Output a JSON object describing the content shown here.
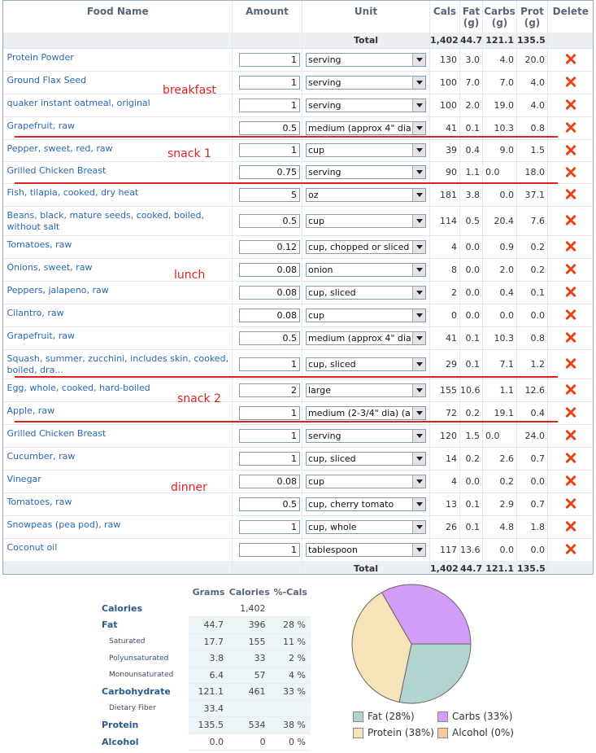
{
  "headers": {
    "name": "Food Name",
    "amount": "Amount",
    "unit": "Unit",
    "cals": "Cals",
    "fat": "Fat (g)",
    "carbs": "Carbs (g)",
    "prot": "Prot (g)",
    "delete": "Delete"
  },
  "total": {
    "label": "Total",
    "cals": "1,402",
    "fat": "44.7",
    "carbs": "121.1",
    "prot": "135.5"
  },
  "foods": [
    {
      "name": "Protein Powder",
      "amount": "1",
      "unit": "serving",
      "cals": "130",
      "fat": "3.0",
      "carbs": "4.0",
      "prot": "20.0"
    },
    {
      "name": "Ground Flax Seed",
      "amount": "1",
      "unit": "serving",
      "cals": "100",
      "fat": "7.0",
      "carbs": "7.0",
      "prot": "4.0"
    },
    {
      "name": "quaker instant oatmeal, original",
      "amount": "1",
      "unit": "serving",
      "cals": "100",
      "fat": "2.0",
      "carbs": "19.0",
      "prot": "4.0"
    },
    {
      "name": "Grapefruit, raw",
      "amount": "0.5",
      "unit": "medium (approx 4\" dia",
      "cals": "41",
      "fat": "0.1",
      "carbs": "10.3",
      "prot": "0.8"
    },
    {
      "name": "Pepper, sweet, red, raw",
      "amount": "1",
      "unit": "cup",
      "cals": "39",
      "fat": "0.4",
      "carbs": "9.0",
      "prot": "1.5"
    },
    {
      "name": "Grilled Chicken Breast",
      "amount": "0.75",
      "unit": "serving",
      "cals": "90",
      "fat": "1.1",
      "carbs": "0.0",
      "prot": "18.0"
    },
    {
      "name": "Fish, tilapia, cooked, dry heat",
      "amount": "5",
      "unit": "oz",
      "cals": "181",
      "fat": "3.8",
      "carbs": "0.0",
      "prot": "37.1"
    },
    {
      "name": "Beans, black, mature seeds, cooked, boiled, without salt",
      "amount": "0.5",
      "unit": "cup",
      "cals": "114",
      "fat": "0.5",
      "carbs": "20.4",
      "prot": "7.6"
    },
    {
      "name": "Tomatoes, raw",
      "amount": "0.12",
      "unit": "cup, chopped or sliced",
      "cals": "4",
      "fat": "0.0",
      "carbs": "0.9",
      "prot": "0.2"
    },
    {
      "name": "Onions, sweet, raw",
      "amount": "0.08",
      "unit": "onion",
      "cals": "8",
      "fat": "0.0",
      "carbs": "2.0",
      "prot": "0.2"
    },
    {
      "name": "Peppers, jalapeno, raw",
      "amount": "0.08",
      "unit": "cup, sliced",
      "cals": "2",
      "fat": "0.0",
      "carbs": "0.4",
      "prot": "0.1"
    },
    {
      "name": "Cilantro, raw",
      "amount": "0.08",
      "unit": "cup",
      "cals": "0",
      "fat": "0.0",
      "carbs": "0.0",
      "prot": "0.0"
    },
    {
      "name": "Grapefruit, raw",
      "amount": "0.5",
      "unit": "medium (approx 4\" dia",
      "cals": "41",
      "fat": "0.1",
      "carbs": "10.3",
      "prot": "0.8"
    },
    {
      "name": "Squash, summer, zucchini, includes skin, cooked, boiled, dra...",
      "amount": "1",
      "unit": "cup, sliced",
      "cals": "29",
      "fat": "0.1",
      "carbs": "7.1",
      "prot": "1.2"
    },
    {
      "name": "Egg, whole, cooked, hard-boiled",
      "amount": "2",
      "unit": "large",
      "cals": "155",
      "fat": "10.6",
      "carbs": "1.1",
      "prot": "12.6"
    },
    {
      "name": "Apple, raw",
      "amount": "1",
      "unit": "medium (2-3/4\" dia) (a",
      "cals": "72",
      "fat": "0.2",
      "carbs": "19.1",
      "prot": "0.4"
    },
    {
      "name": "Grilled Chicken Breast",
      "amount": "1",
      "unit": "serving",
      "cals": "120",
      "fat": "1.5",
      "carbs": "0.0",
      "prot": "24.0"
    },
    {
      "name": "Cucumber, raw",
      "amount": "1",
      "unit": "cup, sliced",
      "cals": "14",
      "fat": "0.2",
      "carbs": "2.6",
      "prot": "0.7"
    },
    {
      "name": "Vinegar",
      "amount": "0.08",
      "unit": "cup",
      "cals": "4",
      "fat": "0.0",
      "carbs": "0.2",
      "prot": "0.0"
    },
    {
      "name": "Tomatoes, raw",
      "amount": "0.5",
      "unit": "cup, cherry tomato",
      "cals": "13",
      "fat": "0.1",
      "carbs": "2.9",
      "prot": "0.7"
    },
    {
      "name": "Snowpeas (pea pod), raw",
      "amount": "1",
      "unit": "cup, whole",
      "cals": "26",
      "fat": "0.1",
      "carbs": "4.8",
      "prot": "1.8"
    },
    {
      "name": "Coconut oil",
      "amount": "1",
      "unit": "tablespoon",
      "cals": "117",
      "fat": "13.6",
      "carbs": "0.0",
      "prot": "0.0"
    }
  ],
  "annotations": {
    "breakfast": "breakfast",
    "snack1": "snack 1",
    "lunch": "lunch",
    "snack2": "snack 2",
    "dinner": "dinner"
  },
  "summary": {
    "headers": {
      "grams": "Grams",
      "calories": "Calories",
      "pct": "%-Cals"
    },
    "rows": [
      {
        "label": "Calories",
        "sub": false,
        "grams": "",
        "calories": "1,402",
        "pct": ""
      },
      {
        "label": "Fat",
        "sub": false,
        "grams": "44.7",
        "calories": "396",
        "pct": "28 %"
      },
      {
        "label": "Saturated",
        "sub": true,
        "grams": "17.7",
        "calories": "155",
        "pct": "11 %"
      },
      {
        "label": "Polyunsaturated",
        "sub": true,
        "grams": "3.8",
        "calories": "33",
        "pct": "2 %"
      },
      {
        "label": "Monounsaturated",
        "sub": true,
        "grams": "6.4",
        "calories": "57",
        "pct": "4 %"
      },
      {
        "label": "Carbohydrate",
        "sub": false,
        "grams": "121.1",
        "calories": "461",
        "pct": "33 %"
      },
      {
        "label": "Dietary Fiber",
        "sub": true,
        "grams": "33.4",
        "calories": "",
        "pct": ""
      },
      {
        "label": "Protein",
        "sub": false,
        "grams": "135.5",
        "calories": "534",
        "pct": "38 %"
      },
      {
        "label": "Alcohol",
        "sub": false,
        "grams": "0.0",
        "calories": "0",
        "pct": "0 %"
      }
    ]
  },
  "chart_data": {
    "type": "pie",
    "labels": [
      "Fat",
      "Carbs",
      "Protein",
      "Alcohol"
    ],
    "values": [
      28,
      33,
      38,
      0
    ],
    "colors": [
      "#b3d3d0",
      "#d39cf7",
      "#f6e4b9",
      "#f7c99c"
    ]
  },
  "legend": {
    "fat": "Fat  (28%)",
    "carbs": "Carbs  (33%)",
    "protein": "Protein  (38%)",
    "alcohol": "Alcohol  (0%)"
  }
}
